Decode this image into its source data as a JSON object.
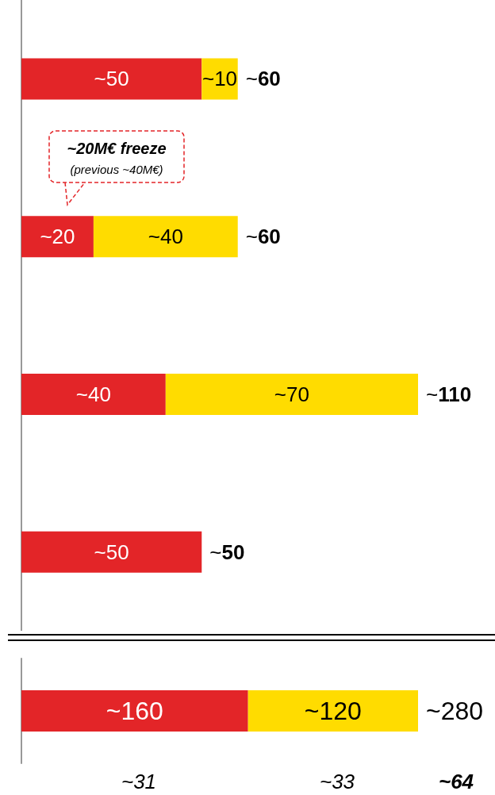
{
  "chart_data": [
    {
      "type": "bar",
      "orientation": "horizontal",
      "stacked": true,
      "categories": [
        null,
        null,
        null,
        null
      ],
      "series": [
        {
          "color": "#e32528",
          "values": [
            50,
            20,
            40,
            50
          ],
          "value_labels": [
            "~50",
            "~20",
            "~40",
            "~50"
          ]
        },
        {
          "color": "#ffdc00",
          "values": [
            10,
            40,
            70,
            null
          ],
          "value_labels": [
            "~10",
            "~40",
            "~70",
            null
          ]
        }
      ],
      "totals": [
        "~60",
        "~60",
        "~110",
        "~50"
      ],
      "annotations": [
        "~20M€ freeze",
        "(previous ~40M€)"
      ]
    },
    {
      "type": "bar",
      "orientation": "horizontal",
      "stacked": true,
      "categories": [
        null
      ],
      "series": [
        {
          "color": "#e32528",
          "values": [
            160
          ],
          "value_labels": [
            "~160"
          ]
        },
        {
          "color": "#ffdc00",
          "values": [
            120
          ],
          "value_labels": [
            "~120"
          ]
        }
      ],
      "totals": [
        "~280"
      ],
      "annotations": [
        "~31",
        "~33",
        "~64"
      ]
    }
  ]
}
